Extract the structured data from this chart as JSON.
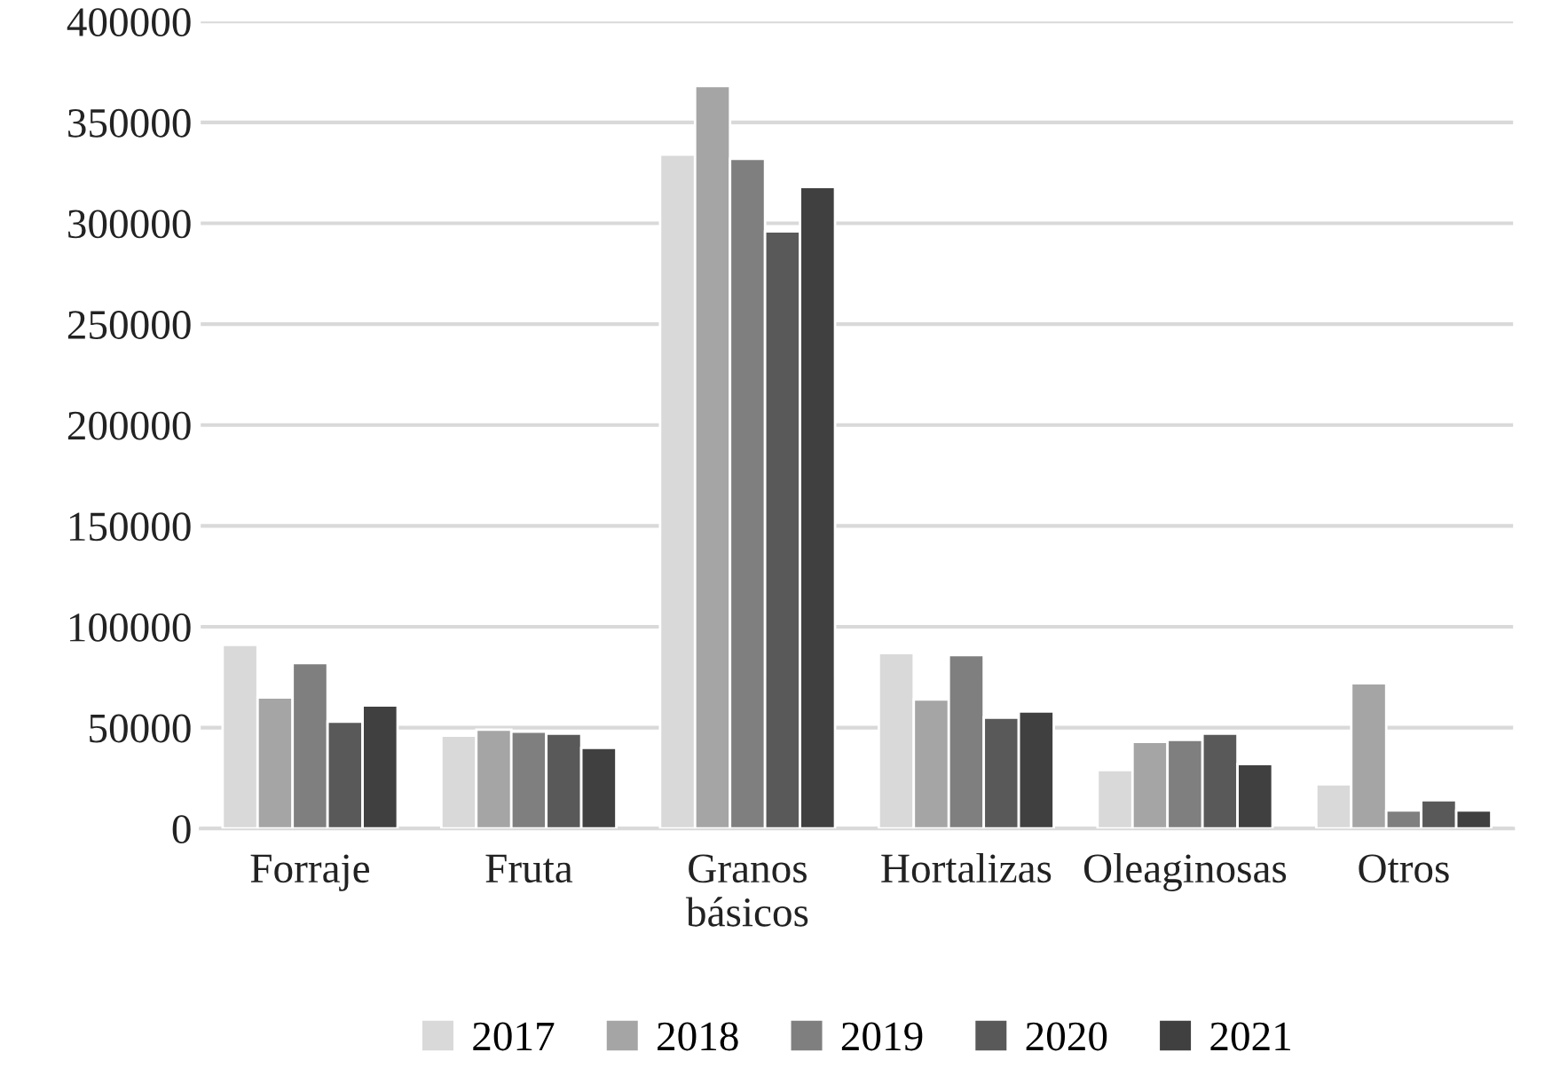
{
  "chart_data": {
    "type": "bar",
    "categories": [
      "Forraje",
      "Fruta",
      "Granos\nbásicos",
      "Hortalizas",
      "Oleaginosas",
      "Otros"
    ],
    "series": [
      {
        "name": "2017",
        "color": "#d9d9d9",
        "values": [
          91000,
          46000,
          334000,
          87000,
          29000,
          22000
        ]
      },
      {
        "name": "2018",
        "color": "#a5a5a5",
        "values": [
          65000,
          49000,
          368000,
          64000,
          43000,
          72000
        ]
      },
      {
        "name": "2019",
        "color": "#7f7f7f",
        "values": [
          82000,
          48000,
          332000,
          86000,
          44000,
          9000
        ]
      },
      {
        "name": "2020",
        "color": "#595959",
        "values": [
          53000,
          47000,
          296000,
          55000,
          47000,
          14000
        ]
      },
      {
        "name": "2021",
        "color": "#404040",
        "values": [
          61000,
          40000,
          318000,
          58000,
          32000,
          9000
        ]
      }
    ],
    "ylim": [
      0,
      400000
    ],
    "yticks": [
      0,
      50000,
      100000,
      150000,
      200000,
      250000,
      300000,
      350000,
      400000
    ],
    "grid": "y",
    "legend": "bottom"
  }
}
